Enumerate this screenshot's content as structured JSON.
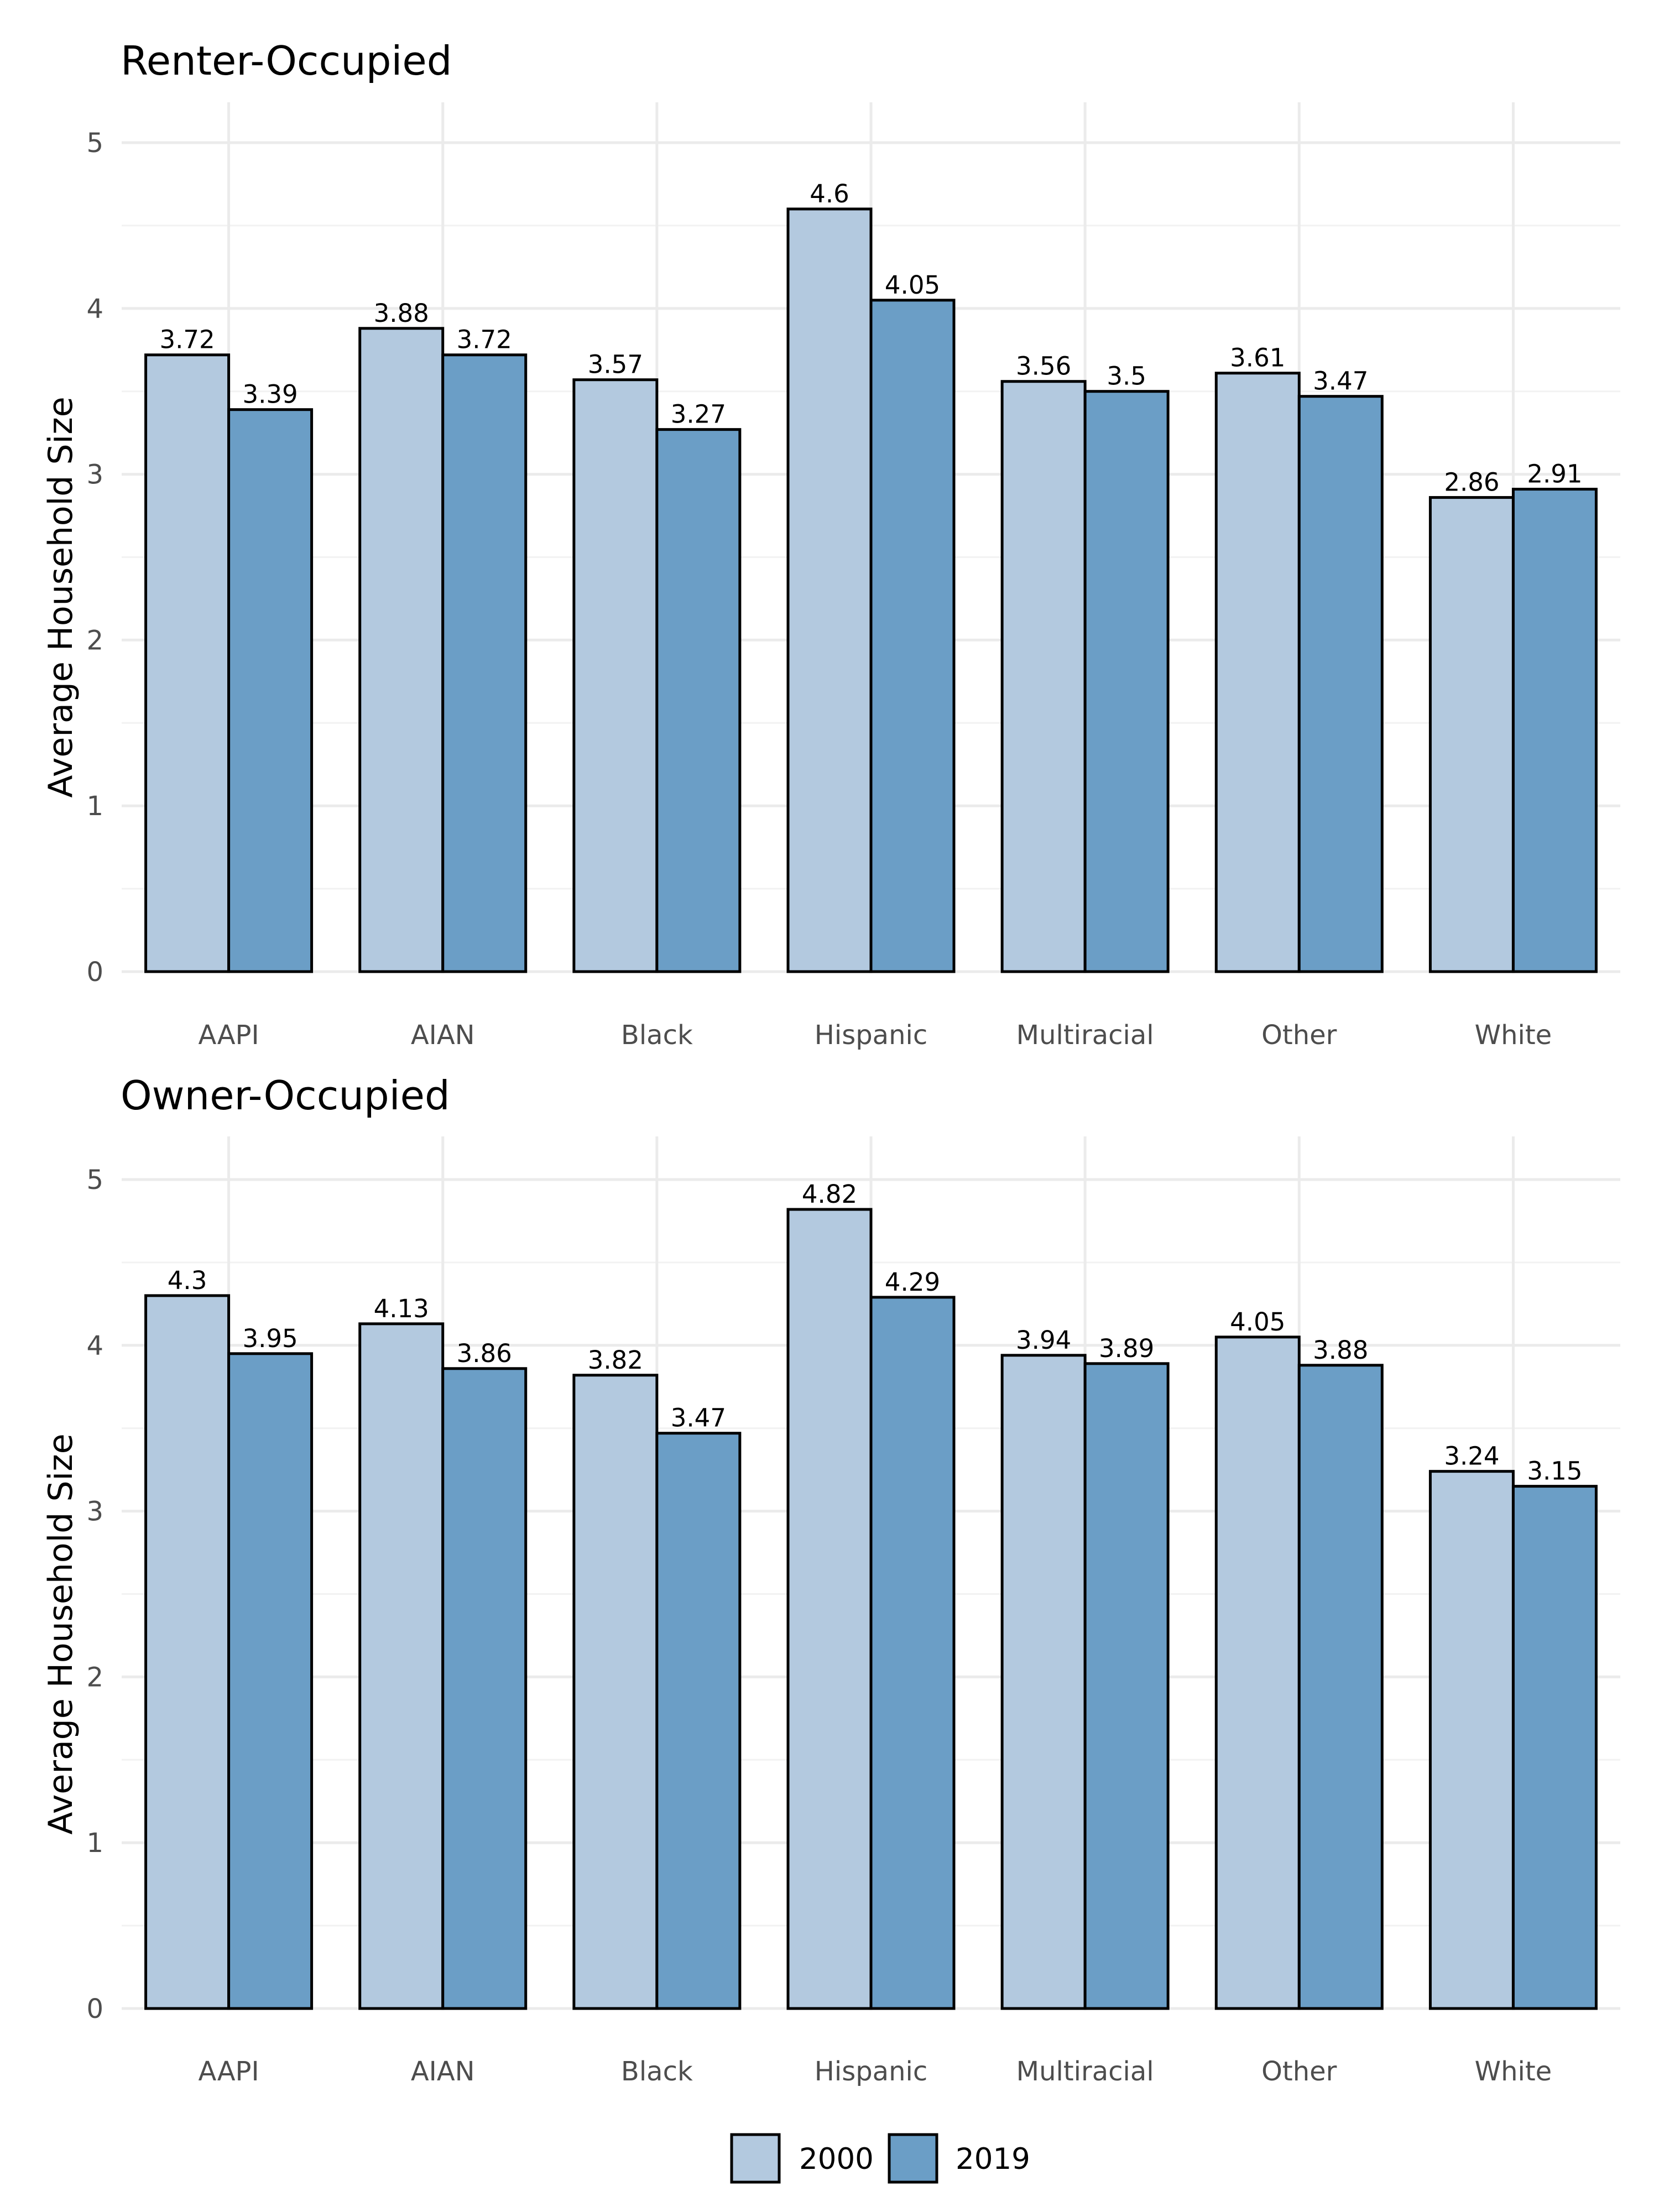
{
  "chart_data": [
    {
      "type": "bar",
      "title": "Renter-Occupied",
      "xlabel": "",
      "ylabel": "Average Household Size",
      "ylim": [
        0,
        5
      ],
      "y_ticks": [
        "0",
        "1",
        "2",
        "3",
        "4",
        "5"
      ],
      "grid": true,
      "categories": [
        "AAPI",
        "AIAN",
        "Black",
        "Hispanic",
        "Multiracial",
        "Other",
        "White"
      ],
      "series": [
        {
          "name": "2000",
          "values": [
            3.72,
            3.88,
            3.57,
            4.6,
            3.56,
            3.61,
            2.86
          ],
          "labels": [
            "3.72",
            "3.88",
            "3.57",
            "4.6",
            "3.56",
            "3.61",
            "2.86"
          ]
        },
        {
          "name": "2019",
          "values": [
            3.39,
            3.72,
            3.27,
            4.05,
            3.5,
            3.47,
            2.91
          ],
          "labels": [
            "3.39",
            "3.72",
            "3.27",
            "4.05",
            "3.5",
            "3.47",
            "2.91"
          ]
        }
      ]
    },
    {
      "type": "bar",
      "title": "Owner-Occupied",
      "xlabel": "",
      "ylabel": "Average Household Size",
      "ylim": [
        0,
        5
      ],
      "y_ticks": [
        "0",
        "1",
        "2",
        "3",
        "4",
        "5"
      ],
      "grid": true,
      "categories": [
        "AAPI",
        "AIAN",
        "Black",
        "Hispanic",
        "Multiracial",
        "Other",
        "White"
      ],
      "series": [
        {
          "name": "2000",
          "values": [
            4.3,
            4.13,
            3.82,
            4.82,
            3.94,
            4.05,
            3.24
          ],
          "labels": [
            "4.3",
            "4.13",
            "3.82",
            "4.82",
            "3.94",
            "4.05",
            "3.24"
          ]
        },
        {
          "name": "2019",
          "values": [
            3.95,
            3.86,
            3.47,
            4.29,
            3.89,
            3.88,
            3.15
          ],
          "labels": [
            "3.95",
            "3.86",
            "3.47",
            "4.29",
            "3.89",
            "3.88",
            "3.15"
          ]
        }
      ]
    }
  ],
  "legend": {
    "position": "bottom",
    "items": [
      {
        "label": "2000",
        "color": "#b3c9df"
      },
      {
        "label": "2019",
        "color": "#6b9ec6"
      }
    ]
  }
}
